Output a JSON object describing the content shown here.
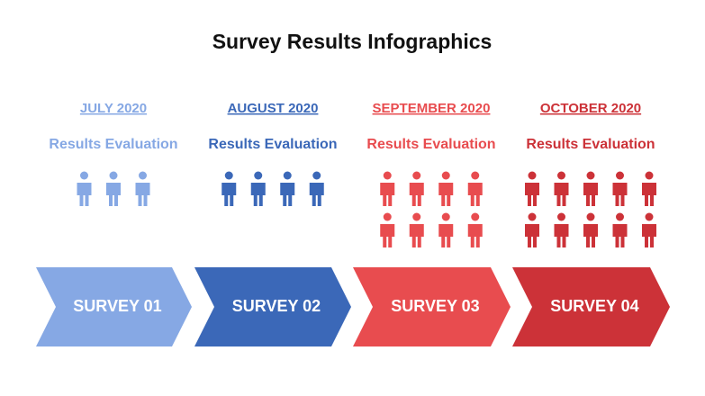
{
  "title": "Survey Results Infographics",
  "columns": [
    {
      "month": "JULY 2020",
      "subtitle": "Results Evaluation",
      "people": 3,
      "survey": "SURVEY 01",
      "color": "#86a8e4"
    },
    {
      "month": "AUGUST 2020",
      "subtitle": "Results Evaluation",
      "people": 4,
      "survey": "SURVEY 02",
      "color": "#3b68b8"
    },
    {
      "month": "SEPTEMBER 2020",
      "subtitle": "Results Evaluation",
      "people": 8,
      "survey": "SURVEY 03",
      "color": "#e84c4f"
    },
    {
      "month": "OCTOBER 2020",
      "subtitle": "Results Evaluation",
      "people": 10,
      "survey": "SURVEY 04",
      "color": "#cc3238"
    }
  ]
}
